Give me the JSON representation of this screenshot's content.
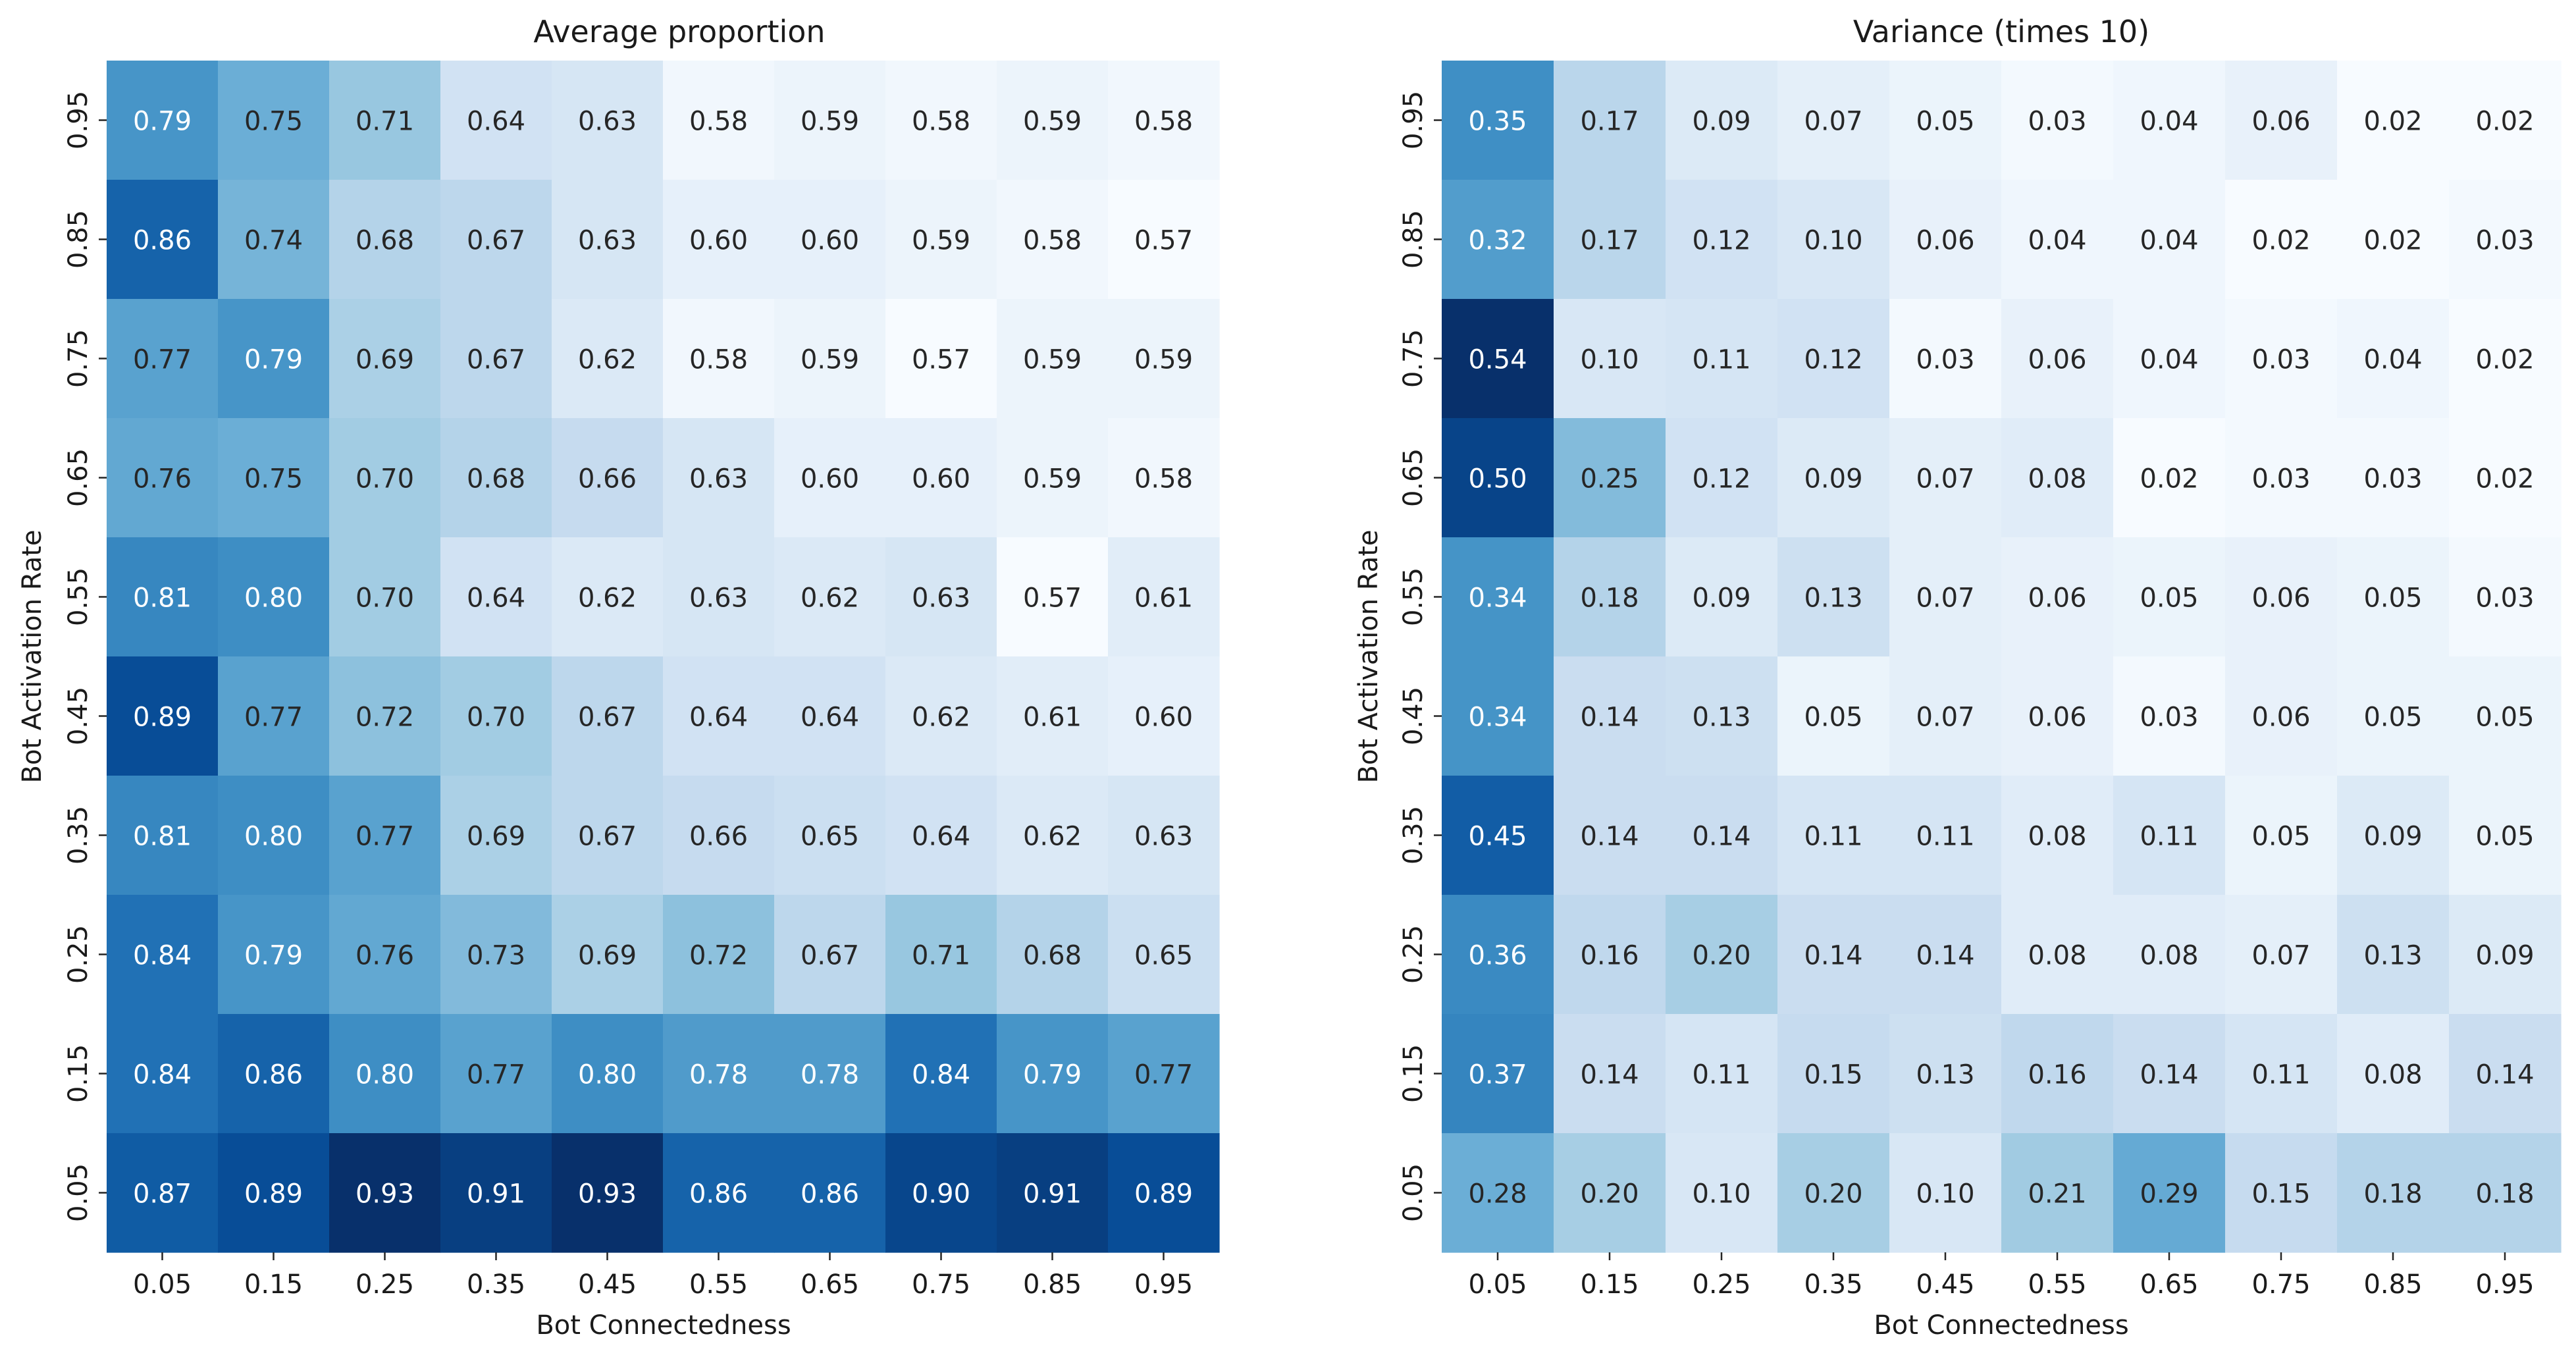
{
  "chart_data": [
    {
      "type": "heatmap",
      "title": "Average proportion",
      "xlabel": "Bot Connectedness",
      "ylabel": "Bot Activation Rate",
      "x_categories": [
        "0.05",
        "0.15",
        "0.25",
        "0.35",
        "0.45",
        "0.55",
        "0.65",
        "0.75",
        "0.85",
        "0.95"
      ],
      "y_categories": [
        "0.95",
        "0.85",
        "0.75",
        "0.65",
        "0.55",
        "0.45",
        "0.35",
        "0.25",
        "0.15",
        "0.05"
      ],
      "colormap": "Blues",
      "vrange": [
        0.57,
        0.93
      ],
      "values": [
        [
          0.79,
          0.75,
          0.71,
          0.64,
          0.63,
          0.58,
          0.59,
          0.58,
          0.59,
          0.58
        ],
        [
          0.86,
          0.74,
          0.68,
          0.67,
          0.63,
          0.6,
          0.6,
          0.59,
          0.58,
          0.57
        ],
        [
          0.77,
          0.79,
          0.69,
          0.67,
          0.62,
          0.58,
          0.59,
          0.57,
          0.59,
          0.59
        ],
        [
          0.76,
          0.75,
          0.7,
          0.68,
          0.66,
          0.63,
          0.6,
          0.6,
          0.59,
          0.58
        ],
        [
          0.81,
          0.8,
          0.7,
          0.64,
          0.62,
          0.63,
          0.62,
          0.63,
          0.57,
          0.61
        ],
        [
          0.89,
          0.77,
          0.72,
          0.7,
          0.67,
          0.64,
          0.64,
          0.62,
          0.61,
          0.6
        ],
        [
          0.81,
          0.8,
          0.77,
          0.69,
          0.67,
          0.66,
          0.65,
          0.64,
          0.62,
          0.63
        ],
        [
          0.84,
          0.79,
          0.76,
          0.73,
          0.69,
          0.72,
          0.67,
          0.71,
          0.68,
          0.65
        ],
        [
          0.84,
          0.86,
          0.8,
          0.77,
          0.8,
          0.78,
          0.78,
          0.84,
          0.79,
          0.77
        ],
        [
          0.87,
          0.89,
          0.93,
          0.91,
          0.93,
          0.86,
          0.86,
          0.9,
          0.91,
          0.89
        ]
      ]
    },
    {
      "type": "heatmap",
      "title": "Variance (times 10)",
      "xlabel": "Bot Connectedness",
      "ylabel": "Bot Activation Rate",
      "x_categories": [
        "0.05",
        "0.15",
        "0.25",
        "0.35",
        "0.45",
        "0.55",
        "0.65",
        "0.75",
        "0.85",
        "0.95"
      ],
      "y_categories": [
        "0.95",
        "0.85",
        "0.75",
        "0.65",
        "0.55",
        "0.45",
        "0.35",
        "0.25",
        "0.15",
        "0.05"
      ],
      "colormap": "Blues",
      "vrange": [
        0.02,
        0.54
      ],
      "values": [
        [
          0.35,
          0.17,
          0.09,
          0.07,
          0.05,
          0.03,
          0.04,
          0.06,
          0.02,
          0.02
        ],
        [
          0.32,
          0.17,
          0.12,
          0.1,
          0.06,
          0.04,
          0.04,
          0.02,
          0.02,
          0.03
        ],
        [
          0.54,
          0.1,
          0.11,
          0.12,
          0.03,
          0.06,
          0.04,
          0.03,
          0.04,
          0.02
        ],
        [
          0.5,
          0.25,
          0.12,
          0.09,
          0.07,
          0.08,
          0.02,
          0.03,
          0.03,
          0.02
        ],
        [
          0.34,
          0.18,
          0.09,
          0.13,
          0.07,
          0.06,
          0.05,
          0.06,
          0.05,
          0.03
        ],
        [
          0.34,
          0.14,
          0.13,
          0.05,
          0.07,
          0.06,
          0.03,
          0.06,
          0.05,
          0.05
        ],
        [
          0.45,
          0.14,
          0.14,
          0.11,
          0.11,
          0.08,
          0.11,
          0.05,
          0.09,
          0.05
        ],
        [
          0.36,
          0.16,
          0.2,
          0.14,
          0.14,
          0.08,
          0.08,
          0.07,
          0.13,
          0.09
        ],
        [
          0.37,
          0.14,
          0.11,
          0.15,
          0.13,
          0.16,
          0.14,
          0.11,
          0.08,
          0.14
        ],
        [
          0.28,
          0.2,
          0.1,
          0.2,
          0.1,
          0.21,
          0.29,
          0.15,
          0.18,
          0.18
        ]
      ]
    }
  ]
}
